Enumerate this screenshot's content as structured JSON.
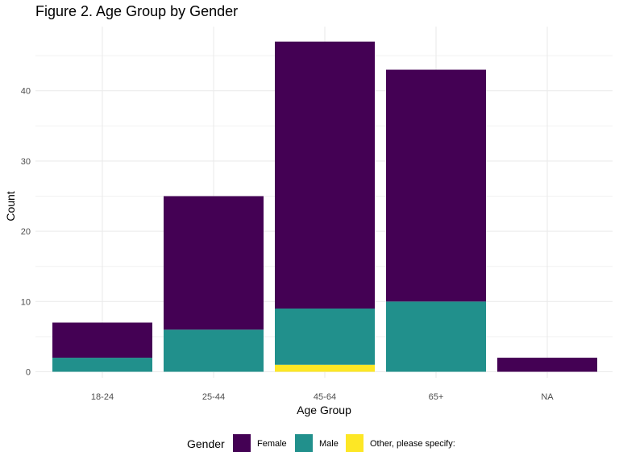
{
  "chart_data": {
    "type": "bar",
    "stacked": true,
    "title": "Figure 2. Age Group by Gender",
    "xlabel": "Age Group",
    "ylabel": "Count",
    "categories": [
      "18-24",
      "25-44",
      "45-64",
      "65+",
      "NA"
    ],
    "ylim": [
      0,
      49
    ],
    "yticks": [
      0,
      10,
      20,
      30,
      40
    ],
    "grid": true,
    "legend": {
      "title": "Gender",
      "position": "bottom"
    },
    "series": [
      {
        "name": "Female",
        "color": "#440154",
        "values": [
          5,
          19,
          38,
          33,
          2
        ]
      },
      {
        "name": "Male",
        "color": "#21908C",
        "values": [
          2,
          6,
          8,
          10,
          0
        ]
      },
      {
        "name": "Other, please specify:",
        "color": "#FDE725",
        "values": [
          0,
          0,
          1,
          0,
          0
        ]
      }
    ]
  }
}
